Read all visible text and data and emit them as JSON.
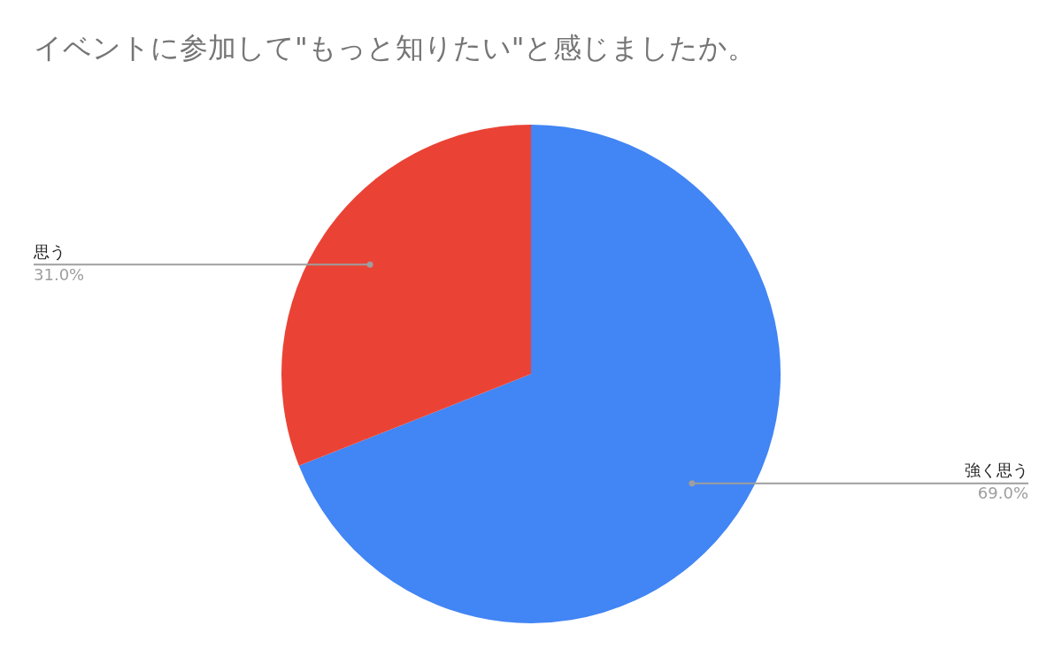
{
  "chart_data": {
    "type": "pie",
    "title": "イベントに参加して\"もっと知りたい\"と感じましたか。",
    "categories": [
      "強く思う",
      "思う"
    ],
    "values": [
      69,
      31
    ],
    "colors": [
      "#4285f4",
      "#ea4335"
    ],
    "value_labels": [
      "69.0%",
      "31.0%"
    ],
    "legend": false
  }
}
